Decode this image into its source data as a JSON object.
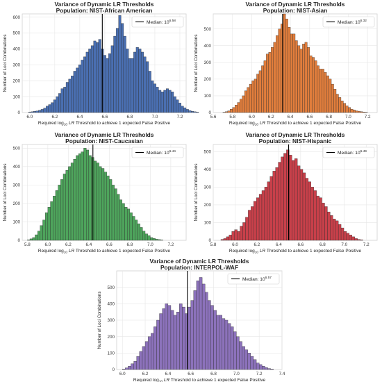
{
  "chart_data": [
    {
      "type": "bar",
      "title": "Variance of Dynamic LR Thresholds",
      "subtitle": "Population: NIST-African American",
      "color": "#4a6fb1",
      "median_value": 6.58,
      "median_label": "6.58",
      "legend_text": "Median: 10",
      "legend_position": "top-right",
      "grid": true,
      "xlabel": "Required log10 LR Threshold to achieve 1 expected False Positive",
      "ylabel": "Number of Loci Combinations",
      "xlim": [
        5.94,
        7.25
      ],
      "ylim": [
        0,
        620
      ],
      "xticks": [
        "6.0",
        "6.2",
        "6.4",
        "6.6",
        "6.8",
        "7.0",
        "7.2"
      ],
      "yticks": [
        "0",
        "100",
        "200",
        "300",
        "400",
        "500",
        "600"
      ],
      "bins": {
        "start": 5.99,
        "width": 0.02
      },
      "values": [
        3,
        5,
        8,
        10,
        14,
        20,
        28,
        40,
        50,
        62,
        80,
        100,
        120,
        150,
        160,
        190,
        210,
        230,
        260,
        280,
        300,
        330,
        350,
        380,
        400,
        420,
        450,
        440,
        460,
        400,
        360,
        340,
        370,
        420,
        480,
        530,
        610,
        560,
        480,
        400,
        340,
        340,
        380,
        410,
        400,
        380,
        350,
        320,
        260,
        200,
        180,
        160,
        140,
        130,
        140,
        150,
        140,
        130,
        100,
        80,
        60,
        40,
        30,
        20,
        12,
        8,
        5,
        3
      ]
    },
    {
      "type": "bar",
      "title": "Variance of Dynamic LR Thresholds",
      "subtitle": "Population: NIST-Asian",
      "color": "#e07d3c",
      "median_value": 6.32,
      "median_label": "6.32",
      "legend_text": "Median: 10",
      "legend_position": "top-right",
      "grid": true,
      "xlabel": "Required log10 LR Threshold to achieve 1 expected False Positive",
      "ylabel": "Number of Loci Combinations",
      "xlim": [
        5.6,
        7.3
      ],
      "ylim": [
        0,
        590
      ],
      "xticks": [
        "5.6",
        "5.8",
        "6.0",
        "6.2",
        "6.4",
        "6.6",
        "6.8",
        "7.0",
        "7.2"
      ],
      "yticks": [
        "0",
        "100",
        "200",
        "300",
        "400",
        "500"
      ],
      "bins": {
        "start": 5.7,
        "width": 0.025
      },
      "values": [
        2,
        5,
        10,
        20,
        30,
        45,
        60,
        80,
        100,
        130,
        150,
        170,
        190,
        200,
        230,
        250,
        280,
        310,
        350,
        360,
        390,
        420,
        460,
        500,
        530,
        590,
        560,
        510,
        470,
        470,
        430,
        400,
        380,
        410,
        420,
        390,
        340,
        330,
        310,
        280,
        260,
        260,
        240,
        220,
        200,
        170,
        140,
        110,
        90,
        70,
        55,
        40,
        30,
        20,
        15,
        10,
        8,
        5,
        3,
        2
      ]
    },
    {
      "type": "bar",
      "title": "Variance of Dynamic LR Thresholds",
      "subtitle": "Population: NIST-Caucasian",
      "color": "#4ea45c",
      "median_value": 6.44,
      "median_label": "6.44",
      "legend_text": "Median: 10",
      "legend_position": "top-right",
      "grid": true,
      "xlabel": "Required log10 LR Threshold to achieve 1 expected False Positive",
      "ylabel": "Number of Loci Combinations",
      "xlim": [
        5.75,
        7.35
      ],
      "ylim": [
        0,
        520
      ],
      "xticks": [
        "5.8",
        "6.0",
        "6.2",
        "6.4",
        "6.6",
        "6.8",
        "7.0",
        "7.2"
      ],
      "yticks": [
        "0",
        "100",
        "200",
        "300",
        "400",
        "500"
      ],
      "bins": {
        "start": 5.8,
        "width": 0.025
      },
      "values": [
        3,
        8,
        15,
        30,
        50,
        80,
        110,
        150,
        180,
        210,
        240,
        270,
        300,
        330,
        360,
        380,
        400,
        420,
        440,
        460,
        470,
        480,
        500,
        490,
        460,
        450,
        430,
        420,
        400,
        390,
        370,
        350,
        330,
        300,
        280,
        250,
        220,
        200,
        180,
        170,
        150,
        130,
        110,
        90,
        70,
        50,
        35,
        25,
        15,
        10,
        6,
        4,
        2
      ]
    },
    {
      "type": "bar",
      "title": "Variance of Dynamic LR Thresholds",
      "subtitle": "Population: NIST-Hispanic",
      "color": "#c8404a",
      "median_value": 6.49,
      "median_label": "6.49",
      "legend_text": "Median: 10",
      "legend_position": "top-right",
      "grid": true,
      "xlabel": "Required log10 LR Threshold to achieve 1 expected False Positive",
      "ylabel": "Number of Loci Combinations",
      "xlim": [
        5.8,
        7.3
      ],
      "ylim": [
        0,
        540
      ],
      "xticks": [
        "5.8",
        "6.0",
        "6.2",
        "6.4",
        "6.6",
        "6.8",
        "7.0",
        "7.2"
      ],
      "yticks": [
        "0",
        "100",
        "200",
        "300",
        "400",
        "500"
      ],
      "bins": {
        "start": 5.87,
        "width": 0.025
      },
      "values": [
        5,
        10,
        20,
        30,
        50,
        60,
        50,
        80,
        100,
        130,
        170,
        190,
        220,
        240,
        260,
        280,
        300,
        330,
        360,
        390,
        410,
        440,
        470,
        490,
        510,
        480,
        450,
        460,
        420,
        400,
        380,
        350,
        330,
        300,
        280,
        250,
        240,
        210,
        190,
        160,
        140,
        120,
        110,
        90,
        70,
        50,
        40,
        30,
        20,
        10,
        5,
        3
      ]
    },
    {
      "type": "bar",
      "title": "Variance of Dynamic LR Thresholds",
      "subtitle": "Population: INTERPOL-WAF",
      "color": "#8c72bb",
      "median_value": 6.57,
      "median_label": "6.57",
      "legend_text": "Median: 10",
      "legend_position": "top-right",
      "grid": true,
      "xlabel": "Required log10 LR Threshold to achieve 1 expected False Positive",
      "ylabel": "Number of Loci Combinations",
      "xlim": [
        5.95,
        7.4
      ],
      "ylim": [
        0,
        600
      ],
      "xticks": [
        "6.0",
        "6.2",
        "6.4",
        "6.6",
        "6.8",
        "7.0",
        "7.2",
        "7.4"
      ],
      "yticks": [
        "0",
        "100",
        "200",
        "300",
        "400",
        "500"
      ],
      "bins": {
        "start": 6.0,
        "width": 0.025
      },
      "values": [
        3,
        10,
        20,
        35,
        50,
        80,
        110,
        140,
        170,
        200,
        220,
        260,
        300,
        340,
        370,
        400,
        390,
        360,
        330,
        350,
        400,
        380,
        340,
        380,
        420,
        480,
        540,
        560,
        520,
        470,
        420,
        390,
        360,
        330,
        330,
        310,
        300,
        280,
        260,
        230,
        200,
        170,
        140,
        120,
        100,
        80,
        60,
        40,
        30,
        20,
        12,
        6,
        3
      ]
    }
  ]
}
